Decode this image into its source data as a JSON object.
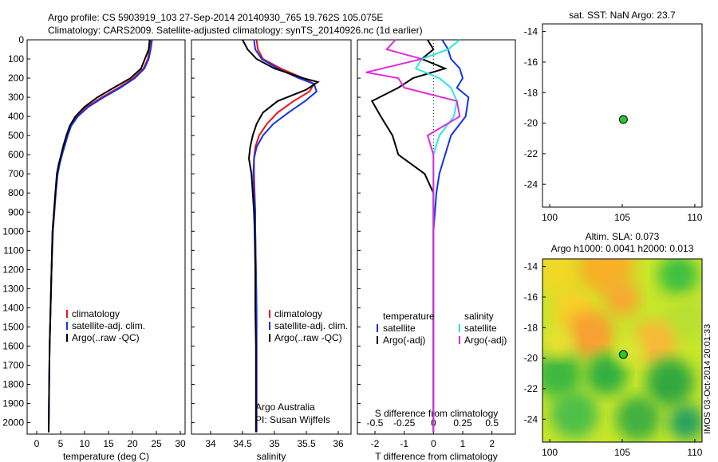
{
  "header": {
    "line1": "Argo profile: CS 5903919_103 27-Sep-2014 20140930_765 19.762S 105.075E",
    "line2": "Climatology: CARS2009. Satellite-adjusted climatology: synTS_20140926.nc (1d earlier)"
  },
  "side_label": "IMOS 03-Oct-2014 20:01:33",
  "colors": {
    "climatology": "#e8141e",
    "satellite": "#1432e6",
    "argo": "#000000",
    "sat_s": "#28e6e6",
    "argo_s": "#e628dc",
    "dot": "#28c828"
  },
  "chart_data": [
    {
      "id": "temperature",
      "type": "line",
      "xlabel": "temperature (deg C)",
      "xlim": [
        -2,
        31
      ],
      "xticks": [
        0,
        5,
        10,
        15,
        20,
        25,
        30
      ],
      "ylim": [
        0,
        2060
      ],
      "yticks": [
        0,
        100,
        200,
        300,
        400,
        500,
        600,
        700,
        800,
        900,
        1000,
        1100,
        1200,
        1300,
        1400,
        1500,
        1600,
        1700,
        1800,
        1900,
        2000
      ],
      "legend": [
        "climatology",
        "satellite-adj. clim.",
        "Argo(..raw -QC)"
      ],
      "series": [
        {
          "name": "climatology",
          "key": "climatology",
          "x": [
            23.9,
            23.6,
            23.2,
            22.3,
            20.2,
            17.1,
            13.6,
            10.5,
            8.4,
            7.1,
            6.4,
            5.8,
            5.2,
            4.7,
            4.3,
            3.9,
            3.6,
            3.3,
            3.1,
            2.9,
            2.7,
            2.6,
            2.5
          ],
          "y": [
            0,
            50,
            100,
            150,
            200,
            250,
            300,
            350,
            400,
            450,
            500,
            550,
            600,
            650,
            700,
            800,
            900,
            1000,
            1200,
            1400,
            1600,
            1800,
            2050
          ]
        },
        {
          "name": "satellite-adj. clim.",
          "key": "satellite",
          "x": [
            24.1,
            23.8,
            23.4,
            22.5,
            20.5,
            17.5,
            14.0,
            10.8,
            8.6,
            7.2,
            6.5,
            5.9,
            5.3,
            4.8,
            4.4,
            4.0,
            3.7,
            3.4,
            3.1,
            2.9,
            2.7,
            2.6,
            2.5
          ],
          "y": [
            0,
            50,
            100,
            150,
            200,
            250,
            300,
            350,
            400,
            450,
            500,
            550,
            600,
            650,
            700,
            800,
            900,
            1000,
            1200,
            1400,
            1600,
            1800,
            2050
          ]
        },
        {
          "name": "Argo(..raw -QC)",
          "key": "argo",
          "x": [
            23.6,
            23.4,
            22.6,
            21.8,
            19.6,
            16.1,
            12.7,
            10.0,
            8.1,
            6.9,
            6.2,
            5.6,
            5.1,
            4.6,
            4.2,
            3.9,
            3.6,
            3.3,
            3.1,
            2.9,
            2.7,
            2.6,
            2.5
          ],
          "y": [
            0,
            50,
            100,
            150,
            200,
            250,
            300,
            350,
            400,
            450,
            500,
            550,
            600,
            650,
            700,
            800,
            900,
            1000,
            1200,
            1400,
            1600,
            1800,
            2050
          ]
        }
      ]
    },
    {
      "id": "salinity",
      "type": "line",
      "xlabel": "salinity",
      "xlim": [
        33.7,
        36.2
      ],
      "xticks": [
        34,
        34.5,
        35,
        35.5,
        36
      ],
      "ylim": [
        0,
        2060
      ],
      "legend": [
        "climatology",
        "satellite-adj. clim.",
        "Argo(..raw -QC)"
      ],
      "credits": [
        "Argo Australia",
        "PI: Susan Wijffels"
      ],
      "series": [
        {
          "name": "climatology",
          "key": "climatology",
          "x": [
            34.72,
            34.74,
            34.82,
            35.1,
            35.45,
            35.62,
            35.55,
            35.3,
            35.05,
            34.88,
            34.76,
            34.7,
            34.68,
            34.68,
            34.69,
            34.7,
            34.7,
            34.71,
            34.72,
            34.72,
            34.72,
            34.72
          ],
          "y": [
            0,
            50,
            100,
            150,
            200,
            230,
            270,
            320,
            380,
            440,
            500,
            560,
            620,
            700,
            800,
            900,
            1000,
            1200,
            1400,
            1600,
            1800,
            2050
          ]
        },
        {
          "name": "satellite-adj. clim.",
          "key": "satellite",
          "x": [
            34.68,
            34.7,
            34.8,
            35.05,
            35.38,
            35.62,
            35.66,
            35.48,
            35.22,
            34.98,
            34.82,
            34.72,
            34.68,
            34.67,
            34.68,
            34.7,
            34.7,
            34.71,
            34.72,
            34.72,
            34.72,
            34.72
          ],
          "y": [
            0,
            50,
            100,
            150,
            200,
            230,
            270,
            320,
            380,
            440,
            500,
            560,
            620,
            700,
            800,
            900,
            1000,
            1200,
            1400,
            1600,
            1800,
            2050
          ]
        },
        {
          "name": "Argo(..raw -QC)",
          "key": "argo",
          "x": [
            34.5,
            34.58,
            34.72,
            35.0,
            35.45,
            35.68,
            35.5,
            35.05,
            34.82,
            34.72,
            34.66,
            34.62,
            34.6,
            34.64,
            34.66,
            34.68,
            34.69,
            34.7,
            34.7,
            34.71,
            34.71,
            34.71
          ],
          "y": [
            0,
            50,
            100,
            150,
            200,
            220,
            260,
            320,
            380,
            440,
            500,
            560,
            620,
            700,
            800,
            900,
            1000,
            1200,
            1400,
            1600,
            1800,
            2050
          ]
        }
      ]
    },
    {
      "id": "difference",
      "type": "line",
      "title": "S difference from climatology",
      "xlabel": "T difference from climatology",
      "xlim": [
        -2.6,
        2.8
      ],
      "xticks": [
        -2,
        -1,
        0,
        1,
        2
      ],
      "top_ticks": [
        "-0.5",
        "-0.25",
        "0",
        "0.25",
        "0.5"
      ],
      "ylim": [
        0,
        2060
      ],
      "legend_t_title": "temperature",
      "legend_s_title": "salinity",
      "legend_t": [
        "satellite",
        "Argo(-adj)"
      ],
      "legend_s": [
        "satellite",
        "Argo(-adj)"
      ],
      "series": [
        {
          "name": "T satellite",
          "key": "satellite",
          "x": [
            0.3,
            0.5,
            0.6,
            0.9,
            1.0,
            0.8,
            1.2,
            1.1,
            0.6,
            0.4,
            0.2,
            0.1,
            0.05,
            0.0,
            0.0,
            0.0,
            0.0,
            0.0,
            0.0,
            0.0,
            0.0
          ],
          "y": [
            0,
            50,
            100,
            150,
            200,
            250,
            300,
            400,
            500,
            600,
            700,
            800,
            900,
            1000,
            1200,
            1400,
            1600,
            1800,
            1900,
            2000,
            2050
          ]
        },
        {
          "name": "T Argo(-adj)",
          "key": "argo",
          "x": [
            -0.2,
            0.0,
            -0.4,
            0.4,
            -0.7,
            -1.2,
            -2.1,
            -1.8,
            -1.4,
            -1.2,
            -0.3,
            0.0,
            0.0,
            0.0,
            0.0,
            0.0,
            0.0,
            0.0,
            0.0,
            0.0,
            0.0
          ],
          "y": [
            0,
            50,
            100,
            150,
            200,
            250,
            320,
            400,
            500,
            600,
            700,
            800,
            900,
            1000,
            1200,
            1400,
            1600,
            1800,
            1900,
            2000,
            2050
          ]
        },
        {
          "name": "S satellite",
          "key": "sat_s",
          "x": [
            0.9,
            0.5,
            -0.4,
            -0.6,
            0.2,
            0.6,
            0.8,
            0.7,
            0.2,
            0.0,
            0.0,
            0.0,
            0.0,
            0.0,
            0.0,
            0.0,
            0.0,
            0.0,
            0.0,
            0.0,
            0.0
          ],
          "y": [
            0,
            50,
            100,
            150,
            200,
            250,
            320,
            400,
            500,
            600,
            700,
            800,
            900,
            1000,
            1200,
            1400,
            1600,
            1800,
            1900,
            2000,
            2050
          ]
        },
        {
          "name": "S Argo(-adj)",
          "key": "argo_s",
          "x": [
            -1.3,
            -1.6,
            -0.4,
            -2.3,
            -1.2,
            -1.0,
            0.8,
            0.9,
            -0.2,
            0.0,
            0.0,
            0.0,
            0.0,
            0.0,
            0.0,
            0.0,
            0.0,
            0.0,
            0.0,
            0.0,
            0.0
          ],
          "y": [
            0,
            50,
            100,
            170,
            200,
            250,
            320,
            400,
            500,
            600,
            700,
            800,
            900,
            1000,
            1200,
            1400,
            1600,
            1800,
            1900,
            2000,
            2050
          ]
        }
      ]
    },
    {
      "id": "sst_map",
      "type": "scatter",
      "title": "sat. SST: NaN Argo: 23.7",
      "xlim": [
        99.5,
        110.5
      ],
      "ylim": [
        -25.5,
        -13.5
      ],
      "xticks": [
        100,
        105,
        110
      ],
      "yticks": [
        -14,
        -16,
        -18,
        -20,
        -22,
        -24
      ],
      "point": {
        "x": 105.075,
        "y": -19.762
      }
    },
    {
      "id": "sla_map",
      "type": "heatmap",
      "title_line1": "Altim. SLA: 0.073",
      "title_line2": "Argo h1000: 0.0041 h2000: 0.013",
      "xlim": [
        99.5,
        110.5
      ],
      "ylim": [
        -25.5,
        -13.5
      ],
      "xticks": [
        100,
        105,
        110
      ],
      "yticks": [
        -14,
        -16,
        -18,
        -20,
        -22,
        -24
      ],
      "point": {
        "x": 105.075,
        "y": -19.762
      }
    }
  ]
}
